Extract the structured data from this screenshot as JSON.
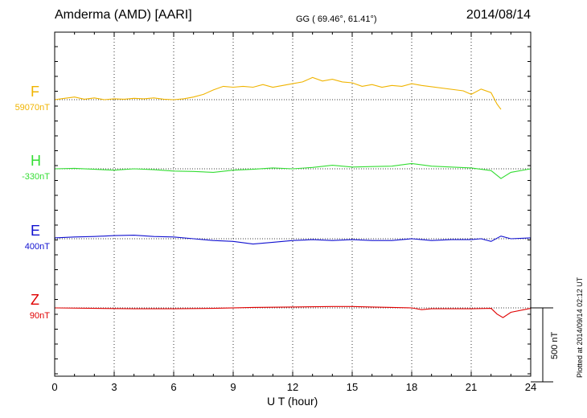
{
  "header": {
    "station": "Amderma (AMD)  [AARI]",
    "coords": "GG ( 69.46°,  61.41°)",
    "date": "2014/08/14"
  },
  "footer": {
    "plotted": "Plotted at 2014/09/14 02:12 UT"
  },
  "scale_bar": {
    "label": "500 nT",
    "value_nT": 500
  },
  "colors": {
    "F": "#f0b400",
    "H": "#33dd33",
    "E": "#1010d0",
    "Z": "#e00000"
  },
  "chart_data": {
    "type": "line",
    "xlabel": "U T (hour)",
    "xlim": [
      0,
      24
    ],
    "x_ticks": [
      "0",
      "3",
      "6",
      "9",
      "12",
      "15",
      "18",
      "21",
      "24"
    ],
    "grid": true,
    "series": [
      {
        "name": "F",
        "baseline_label": "59070nT",
        "color": "#f0b400",
        "x": [
          0,
          0.5,
          1,
          1.5,
          2,
          2.5,
          3,
          3.5,
          4,
          4.5,
          5,
          5.5,
          6,
          6.5,
          7,
          7.5,
          8,
          8.5,
          9,
          9.5,
          10,
          10.5,
          11,
          11.5,
          12,
          12.5,
          13,
          13.5,
          14,
          14.5,
          15,
          15.5,
          16,
          16.5,
          17,
          17.5,
          18,
          18.5,
          20.6,
          21,
          21.5,
          22,
          22.3,
          22.5
        ],
        "y": [
          0,
          15,
          30,
          5,
          20,
          0,
          10,
          5,
          15,
          10,
          20,
          5,
          0,
          10,
          30,
          60,
          110,
          150,
          140,
          150,
          140,
          170,
          140,
          160,
          180,
          200,
          250,
          210,
          230,
          200,
          190,
          150,
          170,
          140,
          160,
          150,
          180,
          160,
          100,
          60,
          120,
          80,
          -50,
          -110
        ]
      },
      {
        "name": "H",
        "baseline_label": "-330nT",
        "color": "#33dd33",
        "x": [
          0,
          1,
          2,
          3,
          4,
          5,
          6,
          7,
          8,
          9,
          10,
          11,
          12,
          13,
          14,
          15,
          16,
          17,
          18,
          19,
          20,
          21,
          22,
          22.5,
          23,
          24
        ],
        "y": [
          0,
          5,
          -5,
          -15,
          0,
          -10,
          -25,
          -30,
          -40,
          -15,
          -5,
          10,
          0,
          15,
          40,
          20,
          25,
          30,
          60,
          30,
          20,
          10,
          -20,
          -110,
          -40,
          0
        ]
      },
      {
        "name": "E",
        "baseline_label": "400nT",
        "color": "#1010d0",
        "x": [
          0,
          1,
          2,
          3,
          4,
          5,
          6,
          7,
          8,
          9,
          10,
          11,
          12,
          13,
          14,
          15,
          16,
          17,
          18,
          18.5,
          19,
          20,
          21,
          21.5,
          22,
          22.5,
          23,
          24
        ],
        "y": [
          10,
          20,
          25,
          35,
          40,
          25,
          20,
          0,
          -20,
          -30,
          -60,
          -40,
          -20,
          -10,
          -20,
          -10,
          -20,
          -20,
          0,
          -10,
          -20,
          -10,
          -10,
          0,
          -30,
          30,
          0,
          10
        ]
      },
      {
        "name": "Z",
        "baseline_label": "90nT",
        "color": "#e00000",
        "x": [
          0,
          2,
          4,
          6,
          8,
          10,
          12,
          14,
          15,
          16,
          17,
          18,
          18.5,
          19,
          20,
          21,
          22,
          22.3,
          22.6,
          23,
          24
        ],
        "y": [
          0,
          -5,
          -10,
          -10,
          -5,
          5,
          10,
          15,
          15,
          10,
          5,
          0,
          -20,
          -10,
          -10,
          -10,
          -5,
          -70,
          -110,
          -50,
          -5
        ]
      }
    ]
  }
}
